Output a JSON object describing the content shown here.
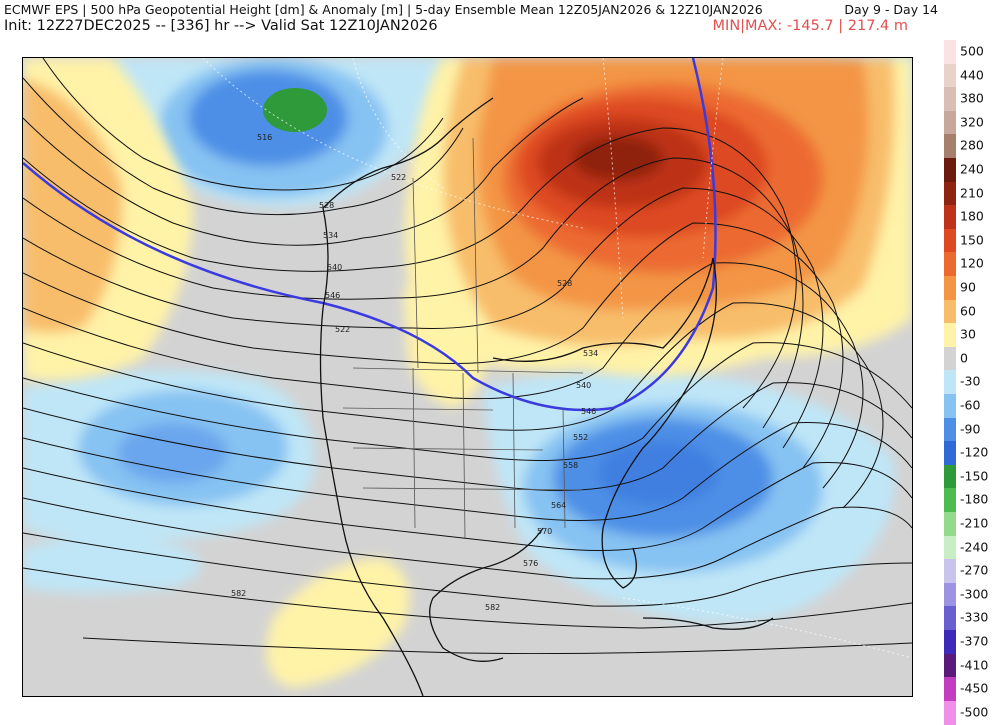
{
  "header": {
    "title": "ECMWF EPS | 500 hPa Geopotential Height [dm] & Anomaly [m] | 5-day Ensemble Mean 12Z05JAN2026 & 12Z10JAN2026",
    "day_range": "Day 9 - Day 14",
    "init_line": "Init: 12Z27DEC2025 -- [336] hr --> Valid Sat 12Z10JAN2026",
    "minmax": "MIN|MAX: -145.7 | 217.4 m"
  },
  "legend": {
    "levels": [
      {
        "label": "500",
        "color": "#fbe3e3"
      },
      {
        "label": "440",
        "color": "#e8d3c8"
      },
      {
        "label": "380",
        "color": "#d9bfb3"
      },
      {
        "label": "320",
        "color": "#c8a89a"
      },
      {
        "label": "280",
        "color": "#a7806d"
      },
      {
        "label": "240",
        "color": "#6b1b0e"
      },
      {
        "label": "210",
        "color": "#8e2410"
      },
      {
        "label": "180",
        "color": "#bd3218"
      },
      {
        "label": "150",
        "color": "#dd4a22"
      },
      {
        "label": "120",
        "color": "#ec6a30"
      },
      {
        "label": "90",
        "color": "#f39545"
      },
      {
        "label": "60",
        "color": "#f8bd6a"
      },
      {
        "label": "30",
        "color": "#fff3a8"
      },
      {
        "label": "0",
        "color": "#d3d3d3"
      },
      {
        "label": "-30",
        "color": "#bfe6f7"
      },
      {
        "label": "-60",
        "color": "#86c2f2"
      },
      {
        "label": "-90",
        "color": "#4d8fe6"
      },
      {
        "label": "-120",
        "color": "#2f6ad6"
      },
      {
        "label": "-150",
        "color": "#2e9a3a"
      },
      {
        "label": "-180",
        "color": "#4dbb4d"
      },
      {
        "label": "-210",
        "color": "#94da8d"
      },
      {
        "label": "-240",
        "color": "#c9edc4"
      },
      {
        "label": "-270",
        "color": "#c8c4ee"
      },
      {
        "label": "-300",
        "color": "#9c94e0"
      },
      {
        "label": "-330",
        "color": "#6a5fd0"
      },
      {
        "label": "-370",
        "color": "#3e2ab8"
      },
      {
        "label": "-410",
        "color": "#5a1a7a"
      },
      {
        "label": "-450",
        "color": "#c23dbf"
      },
      {
        "label": "-500",
        "color": "#f08ee8"
      }
    ]
  },
  "contour_labels": [
    "516",
    "522",
    "528",
    "534",
    "540",
    "546",
    "522",
    "528",
    "534",
    "540",
    "546",
    "552",
    "558",
    "564",
    "570",
    "576",
    "582",
    "582"
  ]
}
